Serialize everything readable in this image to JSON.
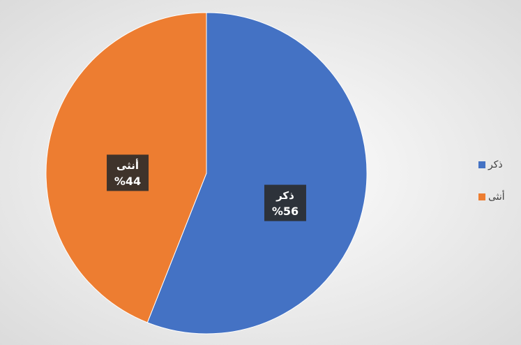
{
  "chart_data": {
    "type": "pie",
    "categories": [
      "ذكر",
      "أنثى"
    ],
    "values": [
      56,
      44
    ],
    "value_labels": [
      "%56",
      "%44"
    ],
    "colors": [
      "#4472c4",
      "#ed7d31"
    ],
    "legend": "right"
  }
}
